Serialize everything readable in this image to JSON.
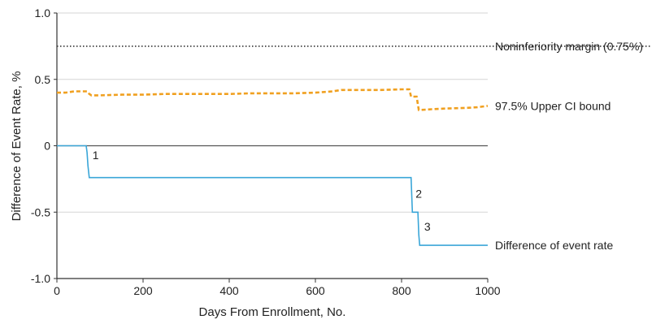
{
  "chart_data": {
    "type": "line",
    "xlabel": "Days From Enrollment, No.",
    "ylabel": "Difference of Event Rate, %",
    "xlim": [
      0,
      1000
    ],
    "ylim": [
      -1.0,
      1.0
    ],
    "x_ticks": [
      "0",
      "200",
      "400",
      "600",
      "800",
      "1000"
    ],
    "y_ticks": [
      "1.0",
      "0.5",
      "0",
      "-0.5",
      "-1.0"
    ],
    "grid": "horizontal",
    "colors": {
      "difference": "#3aa6d8",
      "upper_ci": "#f0a020",
      "margin": "#333333",
      "zero": "#555555"
    },
    "series": [
      {
        "key": "difference",
        "name": "Difference of event rate",
        "style": "step-solid",
        "x": [
          0,
          68,
          70,
          72,
          75,
          822,
          825,
          838,
          840,
          842,
          1000
        ],
        "y": [
          0,
          0,
          -0.05,
          -0.15,
          -0.24,
          -0.24,
          -0.5,
          -0.5,
          -0.67,
          -0.75,
          -0.75
        ]
      },
      {
        "key": "upper_ci",
        "name": "97.5% Upper CI bound",
        "style": "dashed",
        "x": [
          0,
          20,
          40,
          70,
          75,
          80,
          100,
          150,
          200,
          250,
          300,
          350,
          400,
          450,
          500,
          550,
          600,
          620,
          640,
          660,
          700,
          750,
          800,
          818,
          822,
          825,
          835,
          840,
          845,
          870,
          900,
          950,
          975,
          1000
        ],
        "y": [
          0.4,
          0.4,
          0.41,
          0.41,
          0.39,
          0.38,
          0.38,
          0.385,
          0.385,
          0.39,
          0.39,
          0.39,
          0.39,
          0.395,
          0.395,
          0.395,
          0.4,
          0.405,
          0.41,
          0.42,
          0.42,
          0.42,
          0.425,
          0.425,
          0.37,
          0.37,
          0.37,
          0.27,
          0.27,
          0.275,
          0.28,
          0.285,
          0.29,
          0.3
        ]
      },
      {
        "key": "margin",
        "name": "Noninferiority margin (0.75%)",
        "style": "dotted",
        "x": [
          0,
          1000
        ],
        "y": [
          0.75,
          0.75
        ]
      }
    ],
    "annotations": [
      {
        "text": "1",
        "x": 90,
        "y": -0.07
      },
      {
        "text": "2",
        "x": 840,
        "y": -0.36
      },
      {
        "text": "3",
        "x": 860,
        "y": -0.61
      }
    ]
  }
}
